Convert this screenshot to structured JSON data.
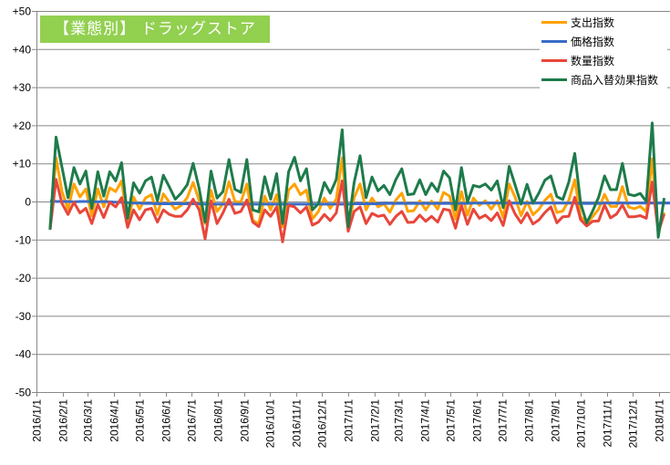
{
  "title": "【業態別】 ドラッグストア",
  "chart_data": {
    "type": "line",
    "title": "【業態別】 ドラッグストア",
    "xlabel": "",
    "ylabel": "",
    "ylim": [
      -50,
      50
    ],
    "yticks": [
      "+50",
      "+40",
      "+30",
      "+20",
      "+10",
      "0",
      "-10",
      "-20",
      "-30",
      "-40",
      "-50"
    ],
    "ytick_values": [
      50,
      40,
      30,
      20,
      10,
      0,
      -10,
      -20,
      -30,
      -40,
      -50
    ],
    "xticks": [
      "2016/1/1",
      "2016/2/1",
      "2016/3/1",
      "2016/4/1",
      "2016/5/1",
      "2016/6/1",
      "2016/7/1",
      "2016/8/1",
      "2016/9/1",
      "2016/10/1",
      "2016/11/1",
      "2016/12/1",
      "2017/1/1",
      "2017/2/1",
      "2017/3/1",
      "2017/4/1",
      "2017/5/1",
      "2017/6/1",
      "2017/7/1",
      "2017/8/1",
      "2017/9/1",
      "2017/10/1",
      "2017/11/1",
      "2017/12/1",
      "2018/1/1"
    ],
    "x_start_date": "2016/1/17",
    "x_interval_days": 7,
    "grid": true,
    "legend_position": "top-right",
    "series": [
      {
        "name": "支出指数",
        "color": "#ffa200",
        "values": [
          -7,
          11.4,
          2.6,
          -2,
          4.6,
          1.2,
          3.3,
          -3.8,
          3.3,
          -1.4,
          3.6,
          2.6,
          5.4,
          -5.4,
          1.2,
          -2,
          0.9,
          1.8,
          -3.4,
          2,
          -0.2,
          -2,
          -1,
          1,
          5,
          0.2,
          -5.8,
          2.9,
          -2.6,
          -0.6,
          5.2,
          0,
          -0.2,
          4.6,
          -5,
          -5.8,
          1.4,
          -2.2,
          1.8,
          -6.6,
          3,
          4.6,
          1.8,
          3,
          -4.6,
          -2.6,
          0.9,
          -1.8,
          0.6,
          11.4,
          -6.6,
          1,
          4.6,
          -2.2,
          0.9,
          -1.4,
          -0.6,
          -2.8,
          0.4,
          2.2,
          -2.6,
          -2.4,
          0.2,
          -2.2,
          0.1,
          -2,
          2.4,
          1.4,
          -4.6,
          2.6,
          -3.6,
          0.9,
          -1,
          0.2,
          -2,
          0.2,
          -4.2,
          4.6,
          1.1,
          -3.7,
          0,
          -3.5,
          -2,
          0.3,
          1.9,
          -2.9,
          -2.5,
          0.3,
          5.7,
          -4,
          -5.6,
          -4,
          -2,
          1.9,
          -1.3,
          -1.3,
          3.9,
          -1.4,
          -1.9,
          -1.3,
          -2.7,
          11.2,
          -8.4,
          -2.9
        ]
      },
      {
        "name": "価格指数",
        "color": "#3a6cc8",
        "values": [
          0.2,
          0,
          0,
          0,
          -0.1,
          0,
          0,
          0,
          -0.1,
          0,
          -0.1,
          -0.2,
          -0.2,
          -0.3,
          -0.4,
          -0.4,
          -0.5,
          -0.5,
          -0.6,
          -0.6,
          -0.6,
          -0.6,
          -0.6,
          -0.6,
          -0.6,
          -0.6,
          -0.7,
          -0.7,
          -0.7,
          -0.7,
          -0.7,
          -0.7,
          -0.7,
          -0.7,
          -0.7,
          -0.7,
          -0.7,
          -0.7,
          -0.7,
          -0.7,
          -0.7,
          -0.7,
          -0.7,
          -0.7,
          -0.7,
          -0.7,
          -0.7,
          -0.7,
          -0.7,
          -0.7,
          -0.7,
          -0.6,
          -0.6,
          -0.6,
          -0.6,
          -0.6,
          -0.5,
          -0.5,
          -0.5,
          -0.5,
          -0.5,
          -0.5,
          -0.5,
          -0.5,
          -0.5,
          -0.5,
          -0.5,
          -0.5,
          -0.5,
          -0.5,
          -0.5,
          -0.4,
          -0.4,
          -0.4,
          -0.4,
          -0.4,
          -0.4,
          -0.4,
          -0.4,
          -0.4,
          -0.4,
          -0.4,
          -0.4,
          -0.4,
          -0.4,
          -0.4,
          -0.4,
          -0.4,
          -0.4,
          -0.5,
          -0.5,
          -0.5,
          -0.5,
          -0.4,
          -0.4,
          -0.4,
          -0.4,
          -0.4,
          -0.4,
          -0.4,
          -0.4,
          -0.4,
          -0.4,
          -0.4,
          -0.4
        ]
      },
      {
        "name": "数量指数",
        "color": "#e8463a",
        "values": [
          -7.4,
          5.8,
          -0.5,
          -3.4,
          -0.2,
          -3,
          -1.8,
          -5.8,
          -0.8,
          -4.2,
          -0.2,
          -1.4,
          1,
          -6.8,
          -2.2,
          -4.8,
          -2.2,
          -1.8,
          -5.4,
          -2.2,
          -3.4,
          -3.9,
          -3.9,
          -2.2,
          0.6,
          -2.2,
          -9.8,
          0.2,
          -5.8,
          -3,
          0.6,
          -3.1,
          -2.6,
          0.4,
          -5.4,
          -6.6,
          -2.2,
          -3.9,
          -1.4,
          -10.6,
          -1,
          -1.4,
          -3,
          -1.4,
          -6.2,
          -5.4,
          -3.4,
          -5,
          -3,
          5.4,
          -7.8,
          -2.6,
          -1.4,
          -5.8,
          -3.1,
          -3.9,
          -3.6,
          -6,
          -3.9,
          -2.6,
          -5.5,
          -5.4,
          -3.6,
          -5.2,
          -3.9,
          -5.4,
          -2,
          -2.3,
          -7,
          -1,
          -6,
          -2,
          -4.4,
          -3.6,
          -5,
          -3,
          -6.3,
          0.2,
          -3.3,
          -5.6,
          -3,
          -5.9,
          -4.8,
          -2.9,
          -1.4,
          -5.6,
          -4,
          -3.9,
          1.1,
          -4.8,
          -6.4,
          -5.2,
          -5.1,
          -0.9,
          -4.3,
          -3.3,
          -0.9,
          -4,
          -4,
          -3.7,
          -4.4,
          5.1,
          -8,
          -3.3
        ]
      },
      {
        "name": "商品入替効果指数",
        "color": "#1e7b4b",
        "values": [
          -7.4,
          16.9,
          9,
          1,
          8.9,
          4.6,
          8,
          -1.8,
          7.8,
          1.4,
          7.8,
          5.4,
          10.2,
          -4.4,
          4.9,
          2.2,
          5.4,
          6.4,
          0.2,
          6.9,
          3.8,
          0.6,
          2.2,
          4.4,
          10,
          3.4,
          -5.4,
          8,
          0.9,
          2.6,
          11,
          3.2,
          2.4,
          11,
          -2.2,
          -2.7,
          6.5,
          0.6,
          7.3,
          -5.8,
          7.8,
          11.6,
          5.4,
          8.6,
          -2.2,
          -0.6,
          5,
          2.2,
          5.8,
          18.8,
          -6.6,
          5,
          12,
          1,
          6.4,
          2.8,
          4.2,
          1.8,
          5.8,
          8.6,
          1.8,
          2,
          5.7,
          1.8,
          4.8,
          2.6,
          8,
          6.2,
          -2.2,
          8.9,
          -0.2,
          4.2,
          3.8,
          4.6,
          3,
          5.4,
          -1.6,
          9.2,
          4.3,
          -0.7,
          4.5,
          -0.5,
          2.3,
          5.6,
          6.7,
          1.3,
          0.5,
          5.1,
          12.6,
          -0.5,
          -5.6,
          -2.5,
          1.1,
          6.7,
          3.1,
          3.1,
          10,
          1.9,
          1.5,
          2.1,
          0,
          20.6,
          -9.4,
          0.9
        ]
      }
    ]
  }
}
